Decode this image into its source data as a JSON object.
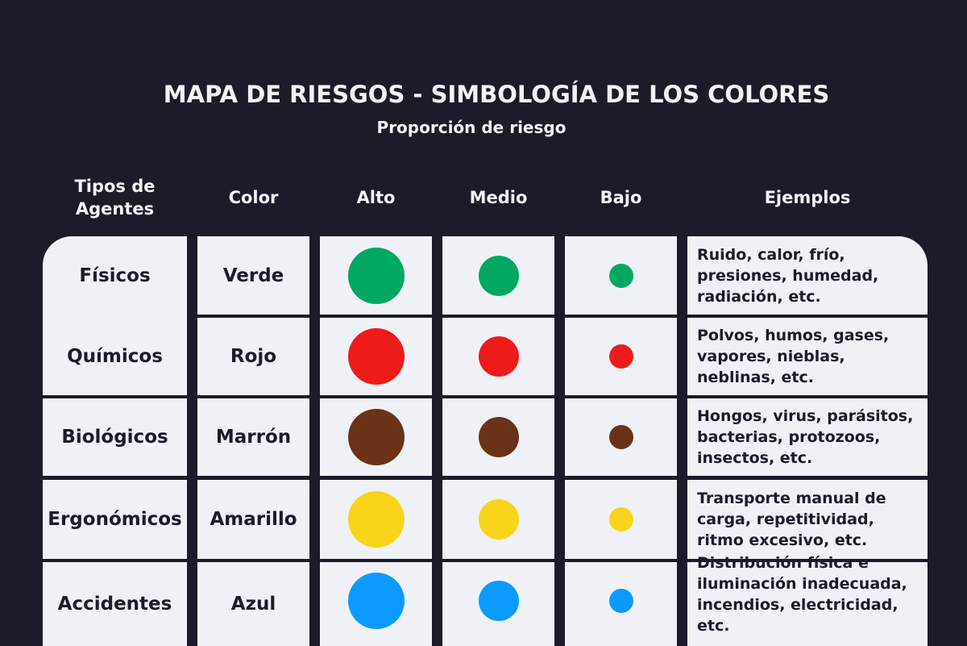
{
  "title": "MAPA DE RIESGOS - SIMBOLOGÍA DE LOS COLORES",
  "subtitle": "Proporción de riesgo",
  "headers": [
    "Tipos de\nAgentes",
    "Color",
    "Alto",
    "Medio",
    "Bajo",
    "Ejemplos"
  ],
  "rows": [
    {
      "agent": "Físicos",
      "color_name": "Verde",
      "color": "#00a862",
      "examples": "Ruido, calor, frío,\npresiones, humedad,\nradiación, etc."
    },
    {
      "agent": "Químicos",
      "color_name": "Rojo",
      "color": "#ee1b1b",
      "examples": "Polvos, humos, gases,\nvapores, nieblas,\nneblinas, etc."
    },
    {
      "agent": "Biológicos",
      "color_name": "Marrón",
      "color": "#6a3318",
      "examples": "Hongos, virus, parásitos,\nbacterias, protozoos,\ninsectos, etc."
    },
    {
      "agent": "Ergonómicos",
      "color_name": "Amarillo",
      "color": "#f8d41a",
      "examples": "Transporte manual de\ncarga, repetitividad,\nritmo excesivo, etc."
    },
    {
      "agent": "Accidentes",
      "color_name": "Azul",
      "color": "#0b9bff",
      "examples": "Distribución física e\niluminación inadecuada,\nincendios, electricidad, etc."
    }
  ]
}
